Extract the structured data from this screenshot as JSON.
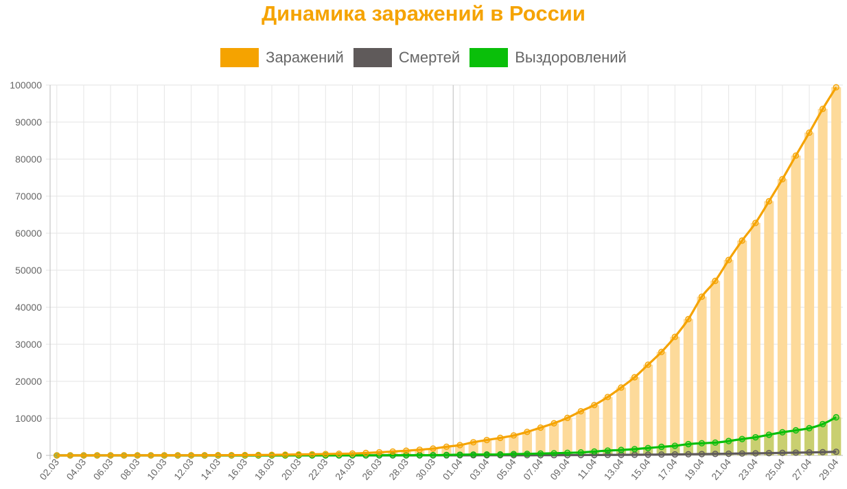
{
  "chart_data": {
    "type": "bar",
    "title": "Динамика заражений в России",
    "xlabel": "",
    "ylabel": "",
    "ylim": [
      0,
      100000
    ],
    "y_ticks": [
      "0",
      "10000",
      "20000",
      "30000",
      "40000",
      "50000",
      "60000",
      "70000",
      "80000",
      "90000",
      "100000"
    ],
    "grid": true,
    "legend_position": "top",
    "divider_after": "31.03",
    "categories": [
      "02.03",
      "03.03",
      "04.03",
      "05.03",
      "06.03",
      "07.03",
      "08.03",
      "09.03",
      "10.03",
      "11.03",
      "12.03",
      "13.03",
      "14.03",
      "15.03",
      "16.03",
      "17.03",
      "18.03",
      "19.03",
      "20.03",
      "21.03",
      "22.03",
      "23.03",
      "24.03",
      "25.03",
      "26.03",
      "27.03",
      "28.03",
      "29.03",
      "30.03",
      "31.03",
      "01.04",
      "02.04",
      "03.04",
      "04.04",
      "05.04",
      "06.04",
      "07.04",
      "08.04",
      "09.04",
      "10.04",
      "11.04",
      "12.04",
      "13.04",
      "14.04",
      "15.04",
      "16.04",
      "17.04",
      "18.04",
      "19.04",
      "20.04",
      "21.04",
      "22.04",
      "23.04",
      "24.04",
      "25.04",
      "26.04",
      "27.04",
      "28.04",
      "29.04"
    ],
    "x_tick_labels": [
      "02.03",
      "04.03",
      "06.03",
      "08.03",
      "10.03",
      "12.03",
      "14.03",
      "16.03",
      "18.03",
      "20.03",
      "22.03",
      "24.03",
      "26.03",
      "28.03",
      "30.03",
      "01.04",
      "03.04",
      "05.04",
      "07.04",
      "09.04",
      "11.04",
      "13.04",
      "15.04",
      "17.04",
      "19.04",
      "21.04",
      "23.04",
      "25.04",
      "27.04",
      "29.04"
    ],
    "series": [
      {
        "name": "Заражений",
        "color": "#f5a300",
        "bar_color": "#fdda9a",
        "values": [
          3,
          3,
          4,
          7,
          10,
          13,
          17,
          17,
          20,
          28,
          34,
          45,
          59,
          63,
          93,
          114,
          147,
          199,
          253,
          306,
          367,
          438,
          495,
          658,
          840,
          1036,
          1264,
          1534,
          1836,
          2337,
          2777,
          3548,
          4149,
          4731,
          5389,
          6343,
          7497,
          8672,
          10131,
          11917,
          13584,
          15770,
          18328,
          21102,
          24490,
          27938,
          32008,
          36793,
          42853,
          47121,
          52763,
          57999,
          62773,
          68622,
          74588,
          80949,
          87147,
          93558,
          99399
        ]
      },
      {
        "name": "Смертей",
        "color": "#5f5a5a",
        "values": [
          0,
          0,
          0,
          0,
          0,
          0,
          0,
          0,
          0,
          0,
          0,
          0,
          0,
          0,
          0,
          0,
          0,
          1,
          1,
          1,
          1,
          1,
          1,
          3,
          3,
          4,
          4,
          8,
          9,
          17,
          24,
          30,
          34,
          43,
          45,
          47,
          58,
          63,
          76,
          94,
          106,
          130,
          148,
          170,
          198,
          232,
          273,
          313,
          361,
          405,
          456,
          513,
          555,
          615,
          681,
          747,
          794,
          867,
          972
        ]
      },
      {
        "name": "Выздоровлений",
        "color": "#0abf0a",
        "bar_color": "#c9cf70",
        "values": [
          0,
          0,
          0,
          0,
          0,
          0,
          0,
          0,
          0,
          0,
          2,
          2,
          2,
          2,
          5,
          5,
          5,
          5,
          9,
          9,
          16,
          17,
          22,
          29,
          38,
          45,
          49,
          64,
          66,
          121,
          190,
          235,
          241,
          263,
          355,
          406,
          494,
          580,
          698,
          794,
          1045,
          1291,
          1470,
          1694,
          1986,
          2304,
          2590,
          3045,
          3290,
          3446,
          3873,
          4420,
          4891,
          5568,
          6250,
          6767,
          7346,
          8456,
          10286
        ]
      }
    ]
  }
}
